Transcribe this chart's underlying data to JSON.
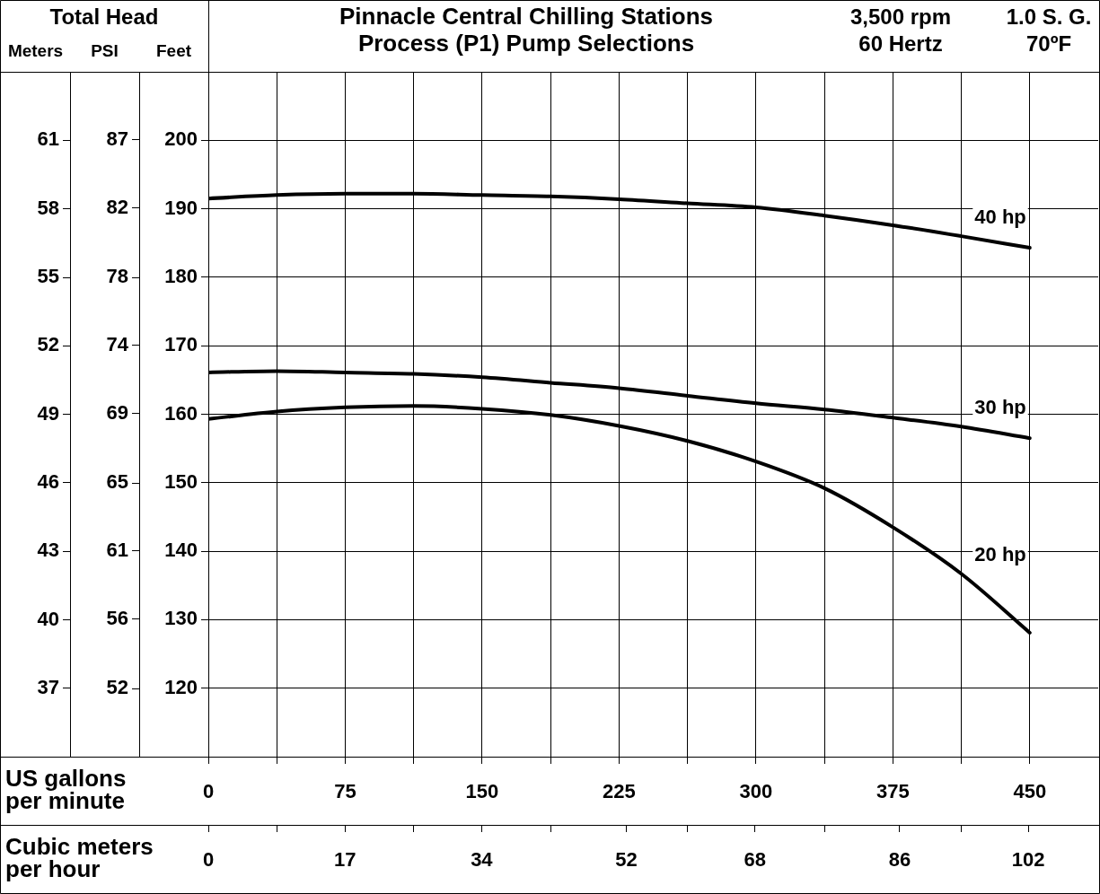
{
  "chart_data": {
    "type": "line",
    "title": "Pinnacle Central Chilling Stations",
    "subtitle": "Process (P1) Pump Selections",
    "xlabel": "US gallons per minute",
    "x2label": "Cubic meters per hour",
    "ylabel": "Feet",
    "y2label": "PSI",
    "y3label": "Meters",
    "annotations": [
      "Total Head",
      "3,500 rpm",
      "60 Hertz",
      "1.0 S. G.",
      "70ºF"
    ],
    "x": [
      0,
      37.5,
      75,
      112.5,
      150,
      187.5,
      225,
      262.5,
      300,
      337.5,
      375,
      412.5,
      450
    ],
    "series": [
      {
        "name": "40 hp",
        "color": "#000000",
        "values": [
          191.5,
          192.0,
          192.2,
          192.2,
          192.0,
          191.8,
          191.4,
          190.8,
          190.2,
          189.0,
          187.6,
          186.0,
          184.3
        ]
      },
      {
        "name": "30 hp",
        "color": "#000000",
        "values": [
          166.1,
          166.3,
          166.1,
          165.9,
          165.4,
          164.6,
          163.8,
          162.7,
          161.6,
          160.7,
          159.5,
          158.2,
          156.5
        ]
      },
      {
        "name": "20 hp",
        "color": "#000000",
        "values": [
          159.3,
          160.4,
          161.0,
          161.2,
          160.8,
          159.9,
          158.3,
          156.1,
          153.1,
          149.2,
          143.5,
          136.7,
          128.1
        ]
      }
    ],
    "xlim": [
      0,
      487.5
    ],
    "xticks": [
      0,
      {
        "value": 37.5,
        "label": null
      },
      75,
      {
        "value": 112.5,
        "label": null
      },
      150,
      {
        "value": 187.5,
        "label": null
      },
      225,
      {
        "value": 262.5,
        "label": null
      },
      300,
      {
        "value": 337.5,
        "label": null
      },
      375,
      {
        "value": 412.5,
        "label": null
      },
      450
    ],
    "x2lim": [
      0,
      110.7
    ],
    "x2ticks": [
      0,
      {
        "value": 8.52,
        "label": null
      },
      17,
      {
        "value": 25.55,
        "label": null
      },
      34,
      {
        "value": 42.58,
        "label": null
      },
      52,
      {
        "value": 59.62,
        "label": null
      },
      68,
      {
        "value": 76.65,
        "label": null
      },
      86,
      {
        "value": 93.68,
        "label": null
      },
      102
    ],
    "ylim": [
      110,
      210
    ],
    "yticks": [
      120,
      130,
      140,
      150,
      160,
      170,
      180,
      190,
      200
    ],
    "y2lim": [
      47.7,
      91.0
    ],
    "y2ticks": [
      {
        "value": 52.0,
        "label": "52"
      },
      {
        "value": 56.4,
        "label": "56"
      },
      {
        "value": 60.7,
        "label": "61"
      },
      {
        "value": 65.0,
        "label": "65"
      },
      {
        "value": 69.4,
        "label": "69"
      },
      {
        "value": 73.7,
        "label": "74"
      },
      {
        "value": 78.0,
        "label": "78"
      },
      {
        "value": 82.4,
        "label": "82"
      },
      {
        "value": 86.7,
        "label": "87"
      }
    ],
    "y3lim": [
      33.53,
      64.01
    ],
    "y3ticks": [
      {
        "value": 36.58,
        "label": "37"
      },
      {
        "value": 39.62,
        "label": "40"
      },
      {
        "value": 42.67,
        "label": "43"
      },
      {
        "value": 45.72,
        "label": "46"
      },
      {
        "value": 48.77,
        "label": "49"
      },
      {
        "value": 51.82,
        "label": "52"
      },
      {
        "value": 54.86,
        "label": "55"
      },
      {
        "value": 57.91,
        "label": "58"
      },
      {
        "value": 60.96,
        "label": "61"
      }
    ],
    "grid": true,
    "legend": false,
    "marker": "none",
    "line_style": "solid"
  }
}
